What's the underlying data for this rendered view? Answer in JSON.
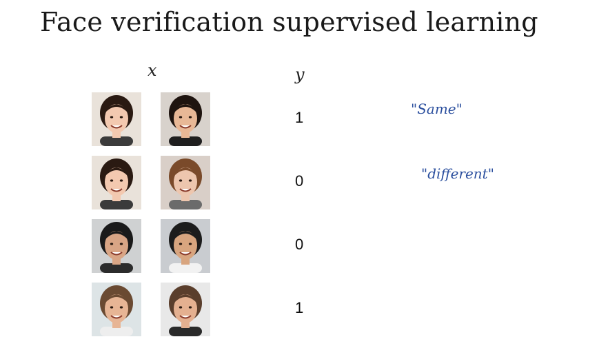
{
  "slide": {
    "title": "Face verification supervised learning",
    "x_label": "x",
    "y_label": "y"
  },
  "rows": [
    {
      "y": "1",
      "note": "\"Same\"",
      "face_a": {
        "skin": "#f3c9b0",
        "hair": "#2a1a12",
        "bg": "#e9e2da",
        "shirt": "#3b3b3b"
      },
      "face_b": {
        "skin": "#e8b896",
        "hair": "#1e140f",
        "bg": "#d8d2cc",
        "shirt": "#1f1f1f"
      }
    },
    {
      "y": "0",
      "note": "\"different\"",
      "face_a": {
        "skin": "#f3c9b0",
        "hair": "#2a1a12",
        "bg": "#e9e2da",
        "shirt": "#3b3b3b"
      },
      "face_b": {
        "skin": "#edc6ae",
        "hair": "#7a4a2a",
        "bg": "#d9cfc8",
        "shirt": "#6b6b6b"
      }
    },
    {
      "y": "0",
      "note": "",
      "face_a": {
        "skin": "#d9a585",
        "hair": "#1a1a1a",
        "bg": "#cfd1d2",
        "shirt": "#2b2b2b"
      },
      "face_b": {
        "skin": "#d8a57f",
        "hair": "#1c1c1c",
        "bg": "#c9ccd0",
        "shirt": "#f2f2f2"
      }
    },
    {
      "y": "1",
      "note": "",
      "face_a": {
        "skin": "#e7b595",
        "hair": "#6a4a32",
        "bg": "#dde4e6",
        "shirt": "#eeeeee"
      },
      "face_b": {
        "skin": "#e4b090",
        "hair": "#5a3e2c",
        "bg": "#e8e8e8",
        "shirt": "#2a2a2a"
      }
    }
  ],
  "colors": {
    "ink": "#1a1a1a",
    "handwriting": "#2b4f9e"
  },
  "icons": {
    "face_a": "face-photo",
    "face_b": "face-photo"
  }
}
